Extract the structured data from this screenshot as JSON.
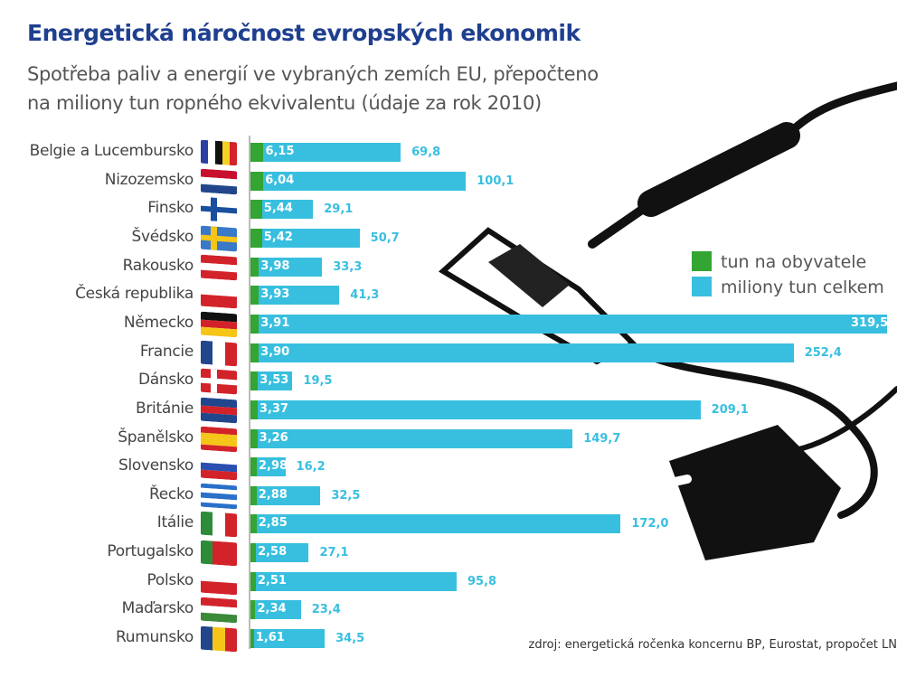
{
  "title": "Energetická náročnost evropských ekonomik",
  "subtitle_lines": [
    "Spotřeba paliv a energií ve vybraných zemích EU, přepočteno",
    "na miliony tun ropného ekvivalentu (údaje za rok 2010)"
  ],
  "source": "zdroj: energetická ročenka koncernu BP, Eurostat, propočet LN",
  "colors": {
    "green": "#33a532",
    "blue": "#38bfdf",
    "title": "#1f3f8f"
  },
  "chart_data": {
    "type": "bar",
    "title": "Energetická náročnost evropských ekonomik",
    "categories": [
      "Belgie a Lucembursko",
      "Nizozemsko",
      "Finsko",
      "Švédsko",
      "Rakousko",
      "Česká republika",
      "Německo",
      "Francie",
      "Dánsko",
      "Británie",
      "Španělsko",
      "Slovensko",
      "Řecko",
      "Itálie",
      "Portugalsko",
      "Polsko",
      "Maďarsko",
      "Rumunsko"
    ],
    "series": [
      {
        "name": "tun na obyvatele",
        "values": [
          6.15,
          6.04,
          5.44,
          5.42,
          3.98,
          3.93,
          3.91,
          3.9,
          3.53,
          3.37,
          3.26,
          2.98,
          2.88,
          2.85,
          2.58,
          2.51,
          2.34,
          1.61
        ],
        "labels": [
          "6,15",
          "6,04",
          "5,44",
          "5,42",
          "3,98",
          "3,93",
          "3,91",
          "3,90",
          "3,53",
          "3,37",
          "3,26",
          "2,98",
          "2,88",
          "2,85",
          "2,58",
          "2,51",
          "2,34",
          "1,61"
        ]
      },
      {
        "name": "miliony tun celkem",
        "values": [
          69.8,
          100.1,
          29.1,
          50.7,
          33.3,
          41.3,
          319.5,
          252.4,
          19.5,
          209.1,
          149.7,
          16.2,
          32.5,
          172.0,
          27.1,
          95.8,
          23.4,
          34.5
        ],
        "labels": [
          "69,8",
          "100,1",
          "29,1",
          "50,7",
          "33,3",
          "41,3",
          "319,5",
          "252,4",
          "19,5",
          "209,1",
          "149,7",
          "16,2",
          "32,5",
          "172,0",
          "27,1",
          "95,8",
          "23,4",
          "34,5"
        ]
      }
    ],
    "legend": [
      "tun na obyvatele",
      "miliony tun celkem"
    ],
    "legend_position": "right",
    "flags": [
      {
        "dir": "v",
        "colors": [
          "#2a3f9f",
          "#fff",
          "#111",
          "#f5d020",
          "#d2232a"
        ]
      },
      {
        "dir": "h",
        "colors": [
          "#c8102e",
          "#fff",
          "#21468b"
        ]
      },
      {
        "dir": "cross",
        "colors": [
          "#fff",
          "#1a4fa0"
        ]
      },
      {
        "dir": "cross",
        "colors": [
          "#3a78c8",
          "#f5c518"
        ]
      },
      {
        "dir": "h",
        "colors": [
          "#d2232a",
          "#fff",
          "#d2232a"
        ]
      },
      {
        "dir": "h",
        "colors": [
          "#fff",
          "#d2232a"
        ]
      },
      {
        "dir": "h",
        "colors": [
          "#111",
          "#d2232a",
          "#f5c518"
        ]
      },
      {
        "dir": "v",
        "colors": [
          "#21468b",
          "#fff",
          "#d2232a"
        ]
      },
      {
        "dir": "cross",
        "colors": [
          "#d2232a",
          "#fff"
        ]
      },
      {
        "dir": "h",
        "colors": [
          "#21468b",
          "#d2232a",
          "#21468b"
        ]
      },
      {
        "dir": "h",
        "colors": [
          "#d2232a",
          "#f5c518",
          "#f5c518",
          "#d2232a"
        ]
      },
      {
        "dir": "h",
        "colors": [
          "#fff",
          "#2a4fb0",
          "#d2232a"
        ]
      },
      {
        "dir": "h",
        "colors": [
          "#2a6fc8",
          "#fff",
          "#2a6fc8",
          "#fff",
          "#2a6fc8"
        ]
      },
      {
        "dir": "v",
        "colors": [
          "#2e8b3a",
          "#fff",
          "#d2232a"
        ]
      },
      {
        "dir": "v",
        "colors": [
          "#2e8b3a",
          "#d2232a",
          "#d2232a"
        ]
      },
      {
        "dir": "h",
        "colors": [
          "#fff",
          "#d2232a"
        ]
      },
      {
        "dir": "h",
        "colors": [
          "#d2232a",
          "#fff",
          "#3a8a3a"
        ]
      },
      {
        "dir": "v",
        "colors": [
          "#21468b",
          "#f5c518",
          "#d2232a"
        ]
      }
    ]
  }
}
